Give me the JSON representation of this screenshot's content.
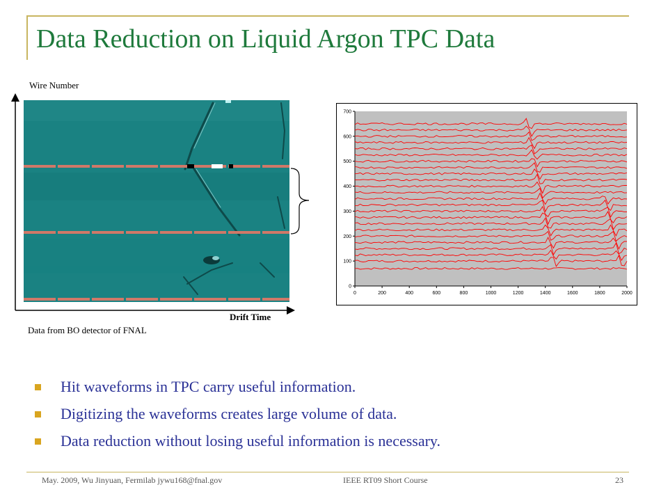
{
  "slide": {
    "title": "Data Reduction on Liquid Argon TPC Data",
    "axis_wire_label": "Wire Number",
    "axis_time_label": "Drift Time",
    "source_note": "Data from BO detector of FNAL"
  },
  "bullets": [
    "Hit waveforms in TPC carry useful information.",
    "Digitizing the waveforms creates large volume of data.",
    "Data reduction without losing useful information is necessary."
  ],
  "footer": {
    "left": "May. 2009, Wu Jinyuan, Fermilab jywu168@fnal.gov",
    "center": "IEEE RT09 Short Course",
    "page": "23"
  },
  "colors": {
    "title": "#1f7a3c",
    "bullet_text": "#2a3196",
    "bullet_marker": "#d9a520",
    "frame": "#c8b560",
    "event_display_bg": "#1a8282",
    "wire_gap": "#d07868",
    "waveform": "#ff0000",
    "plot_bg": "#c0c0c0"
  },
  "chart_data": {
    "type": "line",
    "x_ticks": [
      "0",
      "200",
      "400",
      "600",
      "800",
      "1000",
      "1200",
      "1400",
      "1600",
      "1800",
      "2000"
    ],
    "y_ticks": [
      "0",
      "100",
      "200",
      "300",
      "400",
      "500",
      "600",
      "700"
    ],
    "xlim": [
      0,
      2000
    ],
    "ylim": [
      0,
      700
    ],
    "grid": false,
    "legend": "none",
    "baselines": [
      70,
      100,
      125,
      150,
      175,
      200,
      225,
      250,
      275,
      300,
      325,
      350,
      375,
      400,
      425,
      450,
      475,
      500,
      525,
      550,
      575,
      600,
      625,
      650
    ],
    "pulse_tracks": [
      {
        "x_top": 1270,
        "x_bottom": 1470,
        "y_top": 660,
        "y_bottom": 90
      },
      {
        "x_top": 1850,
        "x_bottom": 1950,
        "y_top": 340,
        "y_bottom": 110
      }
    ]
  }
}
